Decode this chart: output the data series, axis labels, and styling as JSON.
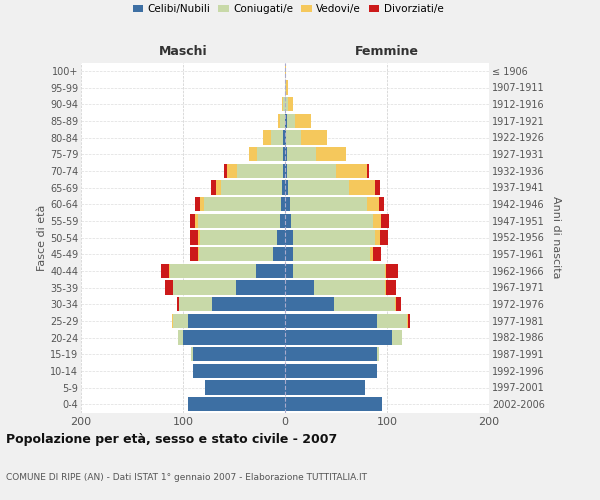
{
  "age_groups": [
    "0-4",
    "5-9",
    "10-14",
    "15-19",
    "20-24",
    "25-29",
    "30-34",
    "35-39",
    "40-44",
    "45-49",
    "50-54",
    "55-59",
    "60-64",
    "65-69",
    "70-74",
    "75-79",
    "80-84",
    "85-89",
    "90-94",
    "95-99",
    "100+"
  ],
  "birth_years": [
    "2002-2006",
    "1997-2001",
    "1992-1996",
    "1987-1991",
    "1982-1986",
    "1977-1981",
    "1972-1976",
    "1967-1971",
    "1962-1966",
    "1957-1961",
    "1952-1956",
    "1947-1951",
    "1942-1946",
    "1937-1941",
    "1932-1936",
    "1927-1931",
    "1922-1926",
    "1917-1921",
    "1912-1916",
    "1907-1911",
    "≤ 1906"
  ],
  "maschi": {
    "celibi": [
      95,
      78,
      90,
      90,
      100,
      95,
      72,
      48,
      28,
      12,
      8,
      5,
      4,
      3,
      2,
      2,
      2,
      0,
      0,
      0,
      0
    ],
    "coniugati": [
      0,
      0,
      0,
      2,
      5,
      15,
      32,
      62,
      85,
      72,
      75,
      80,
      75,
      60,
      45,
      25,
      12,
      5,
      2,
      0,
      0
    ],
    "vedovi": [
      0,
      0,
      0,
      0,
      0,
      1,
      0,
      0,
      1,
      1,
      2,
      3,
      4,
      5,
      10,
      8,
      8,
      2,
      1,
      0,
      0
    ],
    "divorziati": [
      0,
      0,
      0,
      0,
      0,
      0,
      2,
      8,
      8,
      8,
      8,
      5,
      5,
      5,
      3,
      0,
      0,
      0,
      0,
      0,
      0
    ]
  },
  "femmine": {
    "nubili": [
      95,
      78,
      90,
      90,
      105,
      90,
      48,
      28,
      8,
      8,
      8,
      6,
      5,
      3,
      2,
      2,
      1,
      2,
      0,
      0,
      0
    ],
    "coniugate": [
      0,
      0,
      0,
      2,
      10,
      30,
      60,
      70,
      90,
      75,
      80,
      80,
      75,
      60,
      48,
      28,
      15,
      8,
      3,
      1,
      0
    ],
    "vedove": [
      0,
      0,
      0,
      0,
      0,
      1,
      1,
      1,
      1,
      3,
      5,
      8,
      12,
      25,
      30,
      30,
      25,
      15,
      5,
      2,
      1
    ],
    "divorziate": [
      0,
      0,
      0,
      0,
      0,
      2,
      5,
      10,
      12,
      8,
      8,
      8,
      5,
      5,
      2,
      0,
      0,
      0,
      0,
      0,
      0
    ]
  },
  "colors": {
    "celibi": "#3d6fa3",
    "coniugati": "#c8d9a8",
    "vedovi": "#f5c85c",
    "divorziati": "#cc1a1a"
  },
  "xlim": 200,
  "title": "Popolazione per età, sesso e stato civile - 2007",
  "subtitle": "COMUNE DI RIPE (AN) - Dati ISTAT 1° gennaio 2007 - Elaborazione TUTTITALIA.IT",
  "ylabel_left": "Fasce di età",
  "ylabel_right": "Anni di nascita",
  "xlabel_left": "Maschi",
  "xlabel_right": "Femmine",
  "bg_color": "#f0f0f0",
  "plot_bg": "#ffffff",
  "legend_labels": [
    "Celibi/Nubili",
    "Coniugati/e",
    "Vedovi/e",
    "Divorziati/e"
  ]
}
